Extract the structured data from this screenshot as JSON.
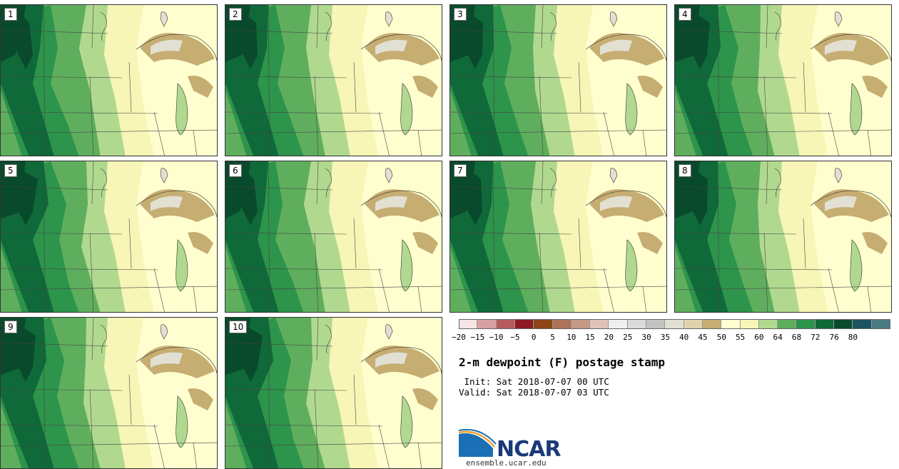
{
  "panels": [
    {
      "label": "1"
    },
    {
      "label": "2"
    },
    {
      "label": "3"
    },
    {
      "label": "4"
    },
    {
      "label": "5"
    },
    {
      "label": "6"
    },
    {
      "label": "7"
    },
    {
      "label": "8"
    },
    {
      "label": "9"
    },
    {
      "label": "10"
    }
  ],
  "colorbar": {
    "colors": [
      "#f5e4e6",
      "#d9a0a2",
      "#b85b5f",
      "#8e1a23",
      "#8c4513",
      "#ad7358",
      "#c49a87",
      "#dfc3b9",
      "#f0eeee",
      "#dcdbdb",
      "#c3c3c3",
      "#e2e0d2",
      "#e0d3ab",
      "#c6ad72",
      "#fffecf",
      "#f7f6b6",
      "#b0d98f",
      "#5fae5e",
      "#2d944b",
      "#106939",
      "#0a4a2c",
      "#1c5560",
      "#4a7a82"
    ],
    "ticks": [
      "−20",
      "−15",
      "−10",
      "−5",
      "0",
      "5",
      "10",
      "15",
      "20",
      "25",
      "30",
      "35",
      "40",
      "45",
      "50",
      "55",
      "60",
      "64",
      "68",
      "72",
      "76",
      "80"
    ]
  },
  "title": "2-m dewpoint (F) postage stamp",
  "init_line": " Init: Sat 2018-07-07 00 UTC",
  "valid_line": "Valid: Sat 2018-07-07 03 UTC",
  "logo": {
    "text": "NCAR",
    "url": "ensemble.ucar.edu"
  }
}
